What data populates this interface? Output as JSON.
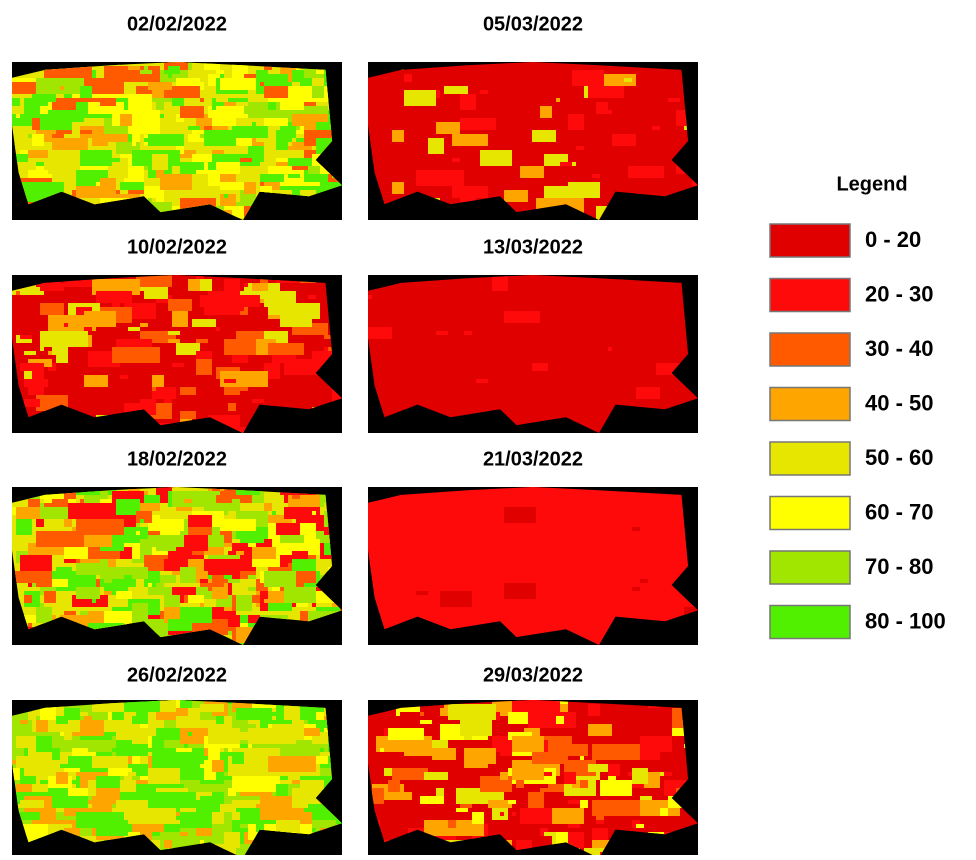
{
  "panels": [
    {
      "title": "02/02/2022"
    },
    {
      "title": "05/03/2022"
    },
    {
      "title": "10/02/2022"
    },
    {
      "title": "13/03/2022"
    },
    {
      "title": "18/02/2022"
    },
    {
      "title": "21/03/2022"
    },
    {
      "title": "26/02/2022"
    },
    {
      "title": "29/03/2022"
    }
  ],
  "legend": {
    "title": "Legend",
    "items": [
      {
        "label": "0 - 20",
        "color": "#e00000"
      },
      {
        "label": "20 - 30",
        "color": "#ff0a0a"
      },
      {
        "label": "30 - 40",
        "color": "#ff5a00"
      },
      {
        "label": "40 - 50",
        "color": "#ffa500"
      },
      {
        "label": "50 - 60",
        "color": "#e6e600"
      },
      {
        "label": "60 - 70",
        "color": "#ffff00"
      },
      {
        "label": "70 - 80",
        "color": "#a0e600"
      },
      {
        "label": "80 - 100",
        "color": "#50f000"
      }
    ]
  }
}
